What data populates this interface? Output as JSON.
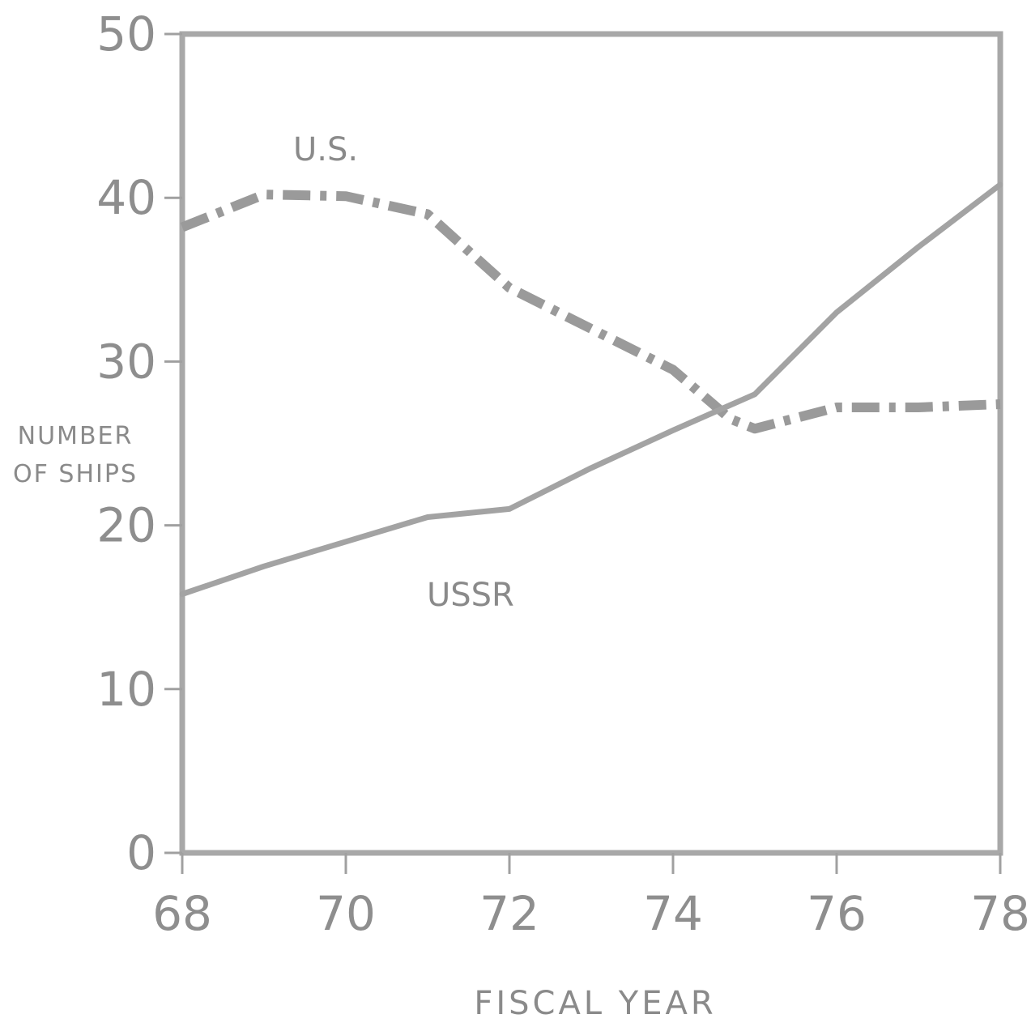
{
  "chart_data": {
    "type": "line",
    "xlabel": "FISCAL YEAR",
    "ylabel": [
      "NUMBER",
      "OF SHIPS"
    ],
    "xlim": [
      68,
      78
    ],
    "ylim": [
      0,
      50
    ],
    "x_ticks": [
      "68",
      "70",
      "72",
      "74",
      "76",
      "78"
    ],
    "y_ticks": [
      "0",
      "10",
      "20",
      "30",
      "40",
      "50"
    ],
    "grid": false,
    "series": [
      {
        "name": "U.S.",
        "style": "dash-dot",
        "color": "#9a9a9a",
        "points": [
          [
            68,
            38.2
          ],
          [
            69,
            40.2
          ],
          [
            70,
            40.1
          ],
          [
            71,
            39.0
          ],
          [
            72,
            34.5
          ],
          [
            73,
            32.0
          ],
          [
            74,
            29.5
          ],
          [
            74.7,
            26.5
          ],
          [
            75,
            25.9
          ],
          [
            76,
            27.2
          ],
          [
            77,
            27.2
          ],
          [
            78,
            27.4
          ]
        ]
      },
      {
        "name": "USSR",
        "style": "solid",
        "color": "#a3a3a3",
        "points": [
          [
            68,
            15.8
          ],
          [
            69,
            17.5
          ],
          [
            70,
            19.0
          ],
          [
            71,
            20.5
          ],
          [
            72,
            21.0
          ],
          [
            73,
            23.5
          ],
          [
            74,
            25.8
          ],
          [
            75,
            28.0
          ],
          [
            76,
            33.0
          ],
          [
            77,
            37.0
          ],
          [
            78,
            40.8
          ]
        ]
      }
    ]
  }
}
